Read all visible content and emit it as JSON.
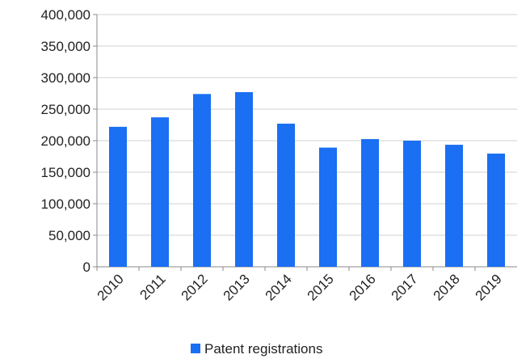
{
  "chart_data": {
    "type": "bar",
    "categories": [
      "2010",
      "2011",
      "2012",
      "2013",
      "2014",
      "2015",
      "2016",
      "2017",
      "2018",
      "2019"
    ],
    "series": [
      {
        "name": "Patent registrations",
        "color": "#1a6ff2",
        "values": [
          222000,
          237000,
          274000,
          277000,
          227000,
          189000,
          202500,
          200000,
          193500,
          179500
        ]
      }
    ],
    "ylim": [
      0,
      400000
    ],
    "yticks": [
      {
        "value": 0,
        "label": "0"
      },
      {
        "value": 50000,
        "label": "50,000"
      },
      {
        "value": 100000,
        "label": "100,000"
      },
      {
        "value": 150000,
        "label": "150,000"
      },
      {
        "value": 200000,
        "label": "200,000"
      },
      {
        "value": 250000,
        "label": "250,000"
      },
      {
        "value": 300000,
        "label": "300,000"
      },
      {
        "value": 350000,
        "label": "350,000"
      },
      {
        "value": 400000,
        "label": "400,000"
      }
    ],
    "grid": true,
    "legend": "bottom"
  }
}
